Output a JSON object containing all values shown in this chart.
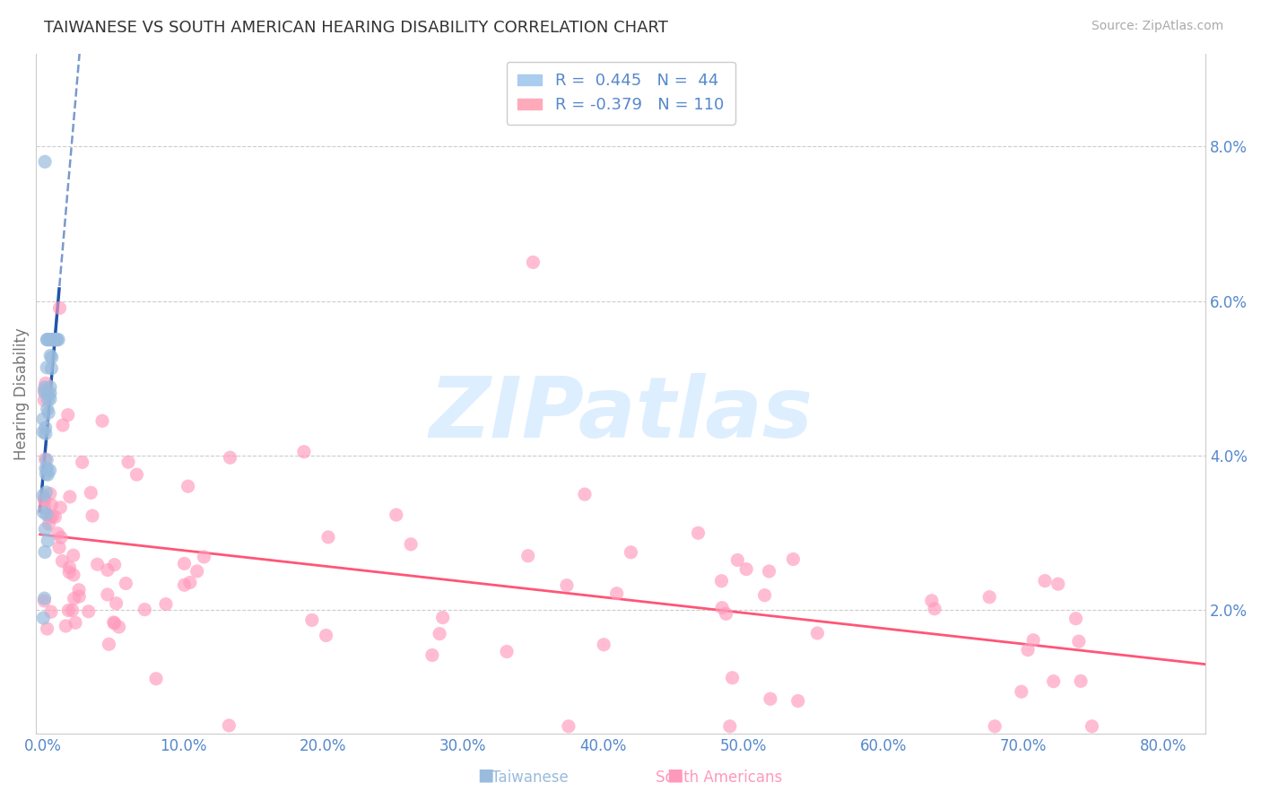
{
  "title": "TAIWANESE VS SOUTH AMERICAN HEARING DISABILITY CORRELATION CHART",
  "source": "Source: ZipAtlas.com",
  "ylabel": "Hearing Disability",
  "blue_color": "#99BBDD",
  "pink_color": "#FF99BB",
  "trend_blue": "#2255AA",
  "trend_pink": "#FF5577",
  "title_color": "#333333",
  "axis_color": "#5588CC",
  "watermark_color": "#DDEEFF",
  "background_color": "#FFFFFF",
  "grid_color": "#CCCCCC",
  "watermark": "ZIPatlas",
  "legend_label1": "R =  0.445   N =  44",
  "legend_label2": "R = -0.379   N = 110",
  "yticks": [
    0.02,
    0.04,
    0.06,
    0.08
  ],
  "ytick_labels": [
    "2.0%",
    "4.0%",
    "6.0%",
    "8.0%"
  ],
  "xticks": [
    0.0,
    0.1,
    0.2,
    0.3,
    0.4,
    0.5,
    0.6,
    0.7,
    0.8
  ],
  "xtick_labels": [
    "0.0%",
    "10.0%",
    "20.0%",
    "30.0%",
    "40.0%",
    "50.0%",
    "60.0%",
    "70.0%",
    "80.0%"
  ],
  "xlim": [
    -0.005,
    0.83
  ],
  "ylim": [
    0.004,
    0.092
  ]
}
